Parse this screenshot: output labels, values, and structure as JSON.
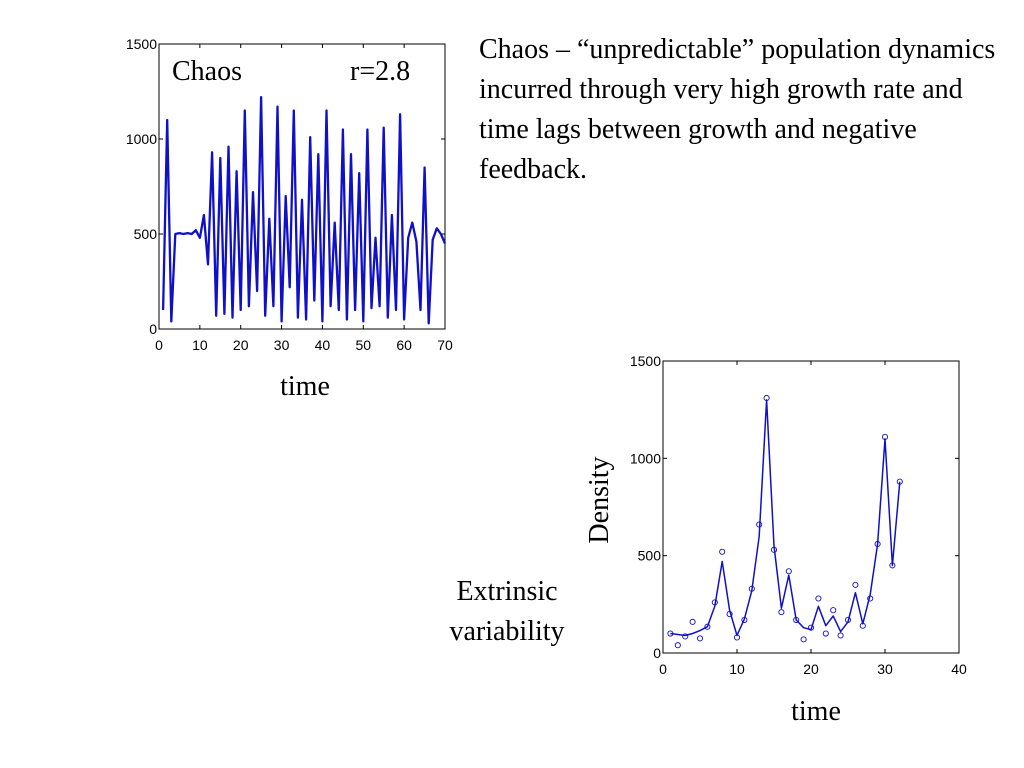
{
  "description_text": "Chaos – “unpredictable” population dynamics incurred through very high growth rate and time lags between growth and negative feedback.",
  "extrinsic_label": "Extrinsic variability",
  "series_color": "#1010c8",
  "chart_data": [
    {
      "type": "line",
      "annotations": [
        "Chaos",
        "r=2.8"
      ],
      "xlabel": "time",
      "ylabel": "",
      "xlim": [
        0,
        70
      ],
      "ylim": [
        0,
        1500
      ],
      "xticks": [
        0,
        10,
        20,
        30,
        40,
        50,
        60,
        70
      ],
      "yticks": [
        0,
        500,
        1000,
        1500
      ],
      "grid": false,
      "series": [
        {
          "x": [
            1,
            2,
            3,
            4,
            5,
            6,
            7,
            8,
            9,
            10,
            11,
            12,
            13,
            14,
            15,
            16,
            17,
            18,
            19,
            20,
            21,
            22,
            23,
            24,
            25,
            26,
            27,
            28,
            29,
            30,
            31,
            32,
            33,
            34,
            35,
            36,
            37,
            38,
            39,
            40,
            41,
            42,
            43,
            44,
            45,
            46,
            47,
            48,
            49,
            50,
            51,
            52,
            53,
            54,
            55,
            56,
            57,
            58,
            59,
            60,
            61,
            62,
            63,
            64,
            65,
            66,
            67,
            68,
            69,
            70
          ],
          "y": [
            100,
            1100,
            40,
            500,
            505,
            500,
            505,
            500,
            520,
            480,
            600,
            340,
            930,
            70,
            900,
            80,
            960,
            60,
            830,
            100,
            1150,
            120,
            720,
            200,
            1220,
            70,
            580,
            120,
            1170,
            40,
            700,
            220,
            1150,
            60,
            680,
            50,
            1010,
            150,
            920,
            40,
            1150,
            120,
            560,
            100,
            1050,
            50,
            920,
            100,
            820,
            40,
            1050,
            110,
            480,
            120,
            1060,
            60,
            600,
            100,
            1130,
            50,
            480,
            560,
            460,
            100,
            850,
            30,
            470,
            530,
            500,
            450
          ]
        }
      ]
    },
    {
      "type": "line",
      "xlabel": "time",
      "ylabel": "Density",
      "xlim": [
        0,
        40
      ],
      "ylim": [
        0,
        1500
      ],
      "xticks": [
        0,
        10,
        20,
        30,
        40
      ],
      "yticks": [
        0,
        500,
        1000,
        1500
      ],
      "grid": false,
      "series": [
        {
          "x": [
            1,
            2,
            3,
            4,
            5,
            6,
            7,
            8,
            9,
            10,
            11,
            12,
            13,
            14,
            15,
            16,
            17,
            18,
            19,
            20,
            21,
            22,
            23,
            24,
            25,
            26,
            27,
            28,
            29,
            30,
            31,
            32
          ],
          "y": [
            100,
            95,
            90,
            100,
            115,
            135,
            240,
            470,
            220,
            90,
            175,
            320,
            600,
            1300,
            550,
            230,
            400,
            170,
            130,
            120,
            240,
            140,
            190,
            110,
            160,
            310,
            150,
            300,
            560,
            1100,
            450,
            880
          ]
        },
        {
          "x": [
            1,
            2,
            3,
            4,
            5,
            6,
            7,
            8,
            9,
            10,
            11,
            12,
            13,
            14,
            15,
            16,
            17,
            18,
            19,
            20,
            21,
            22,
            23,
            24,
            25,
            26,
            27,
            28,
            29,
            30,
            31,
            32
          ],
          "y": [
            100,
            40,
            85,
            160,
            75,
            135,
            260,
            520,
            200,
            80,
            170,
            330,
            660,
            1310,
            530,
            210,
            420,
            170,
            70,
            130,
            280,
            100,
            220,
            90,
            170,
            350,
            140,
            280,
            560,
            1110,
            450,
            880
          ]
        }
      ]
    }
  ]
}
